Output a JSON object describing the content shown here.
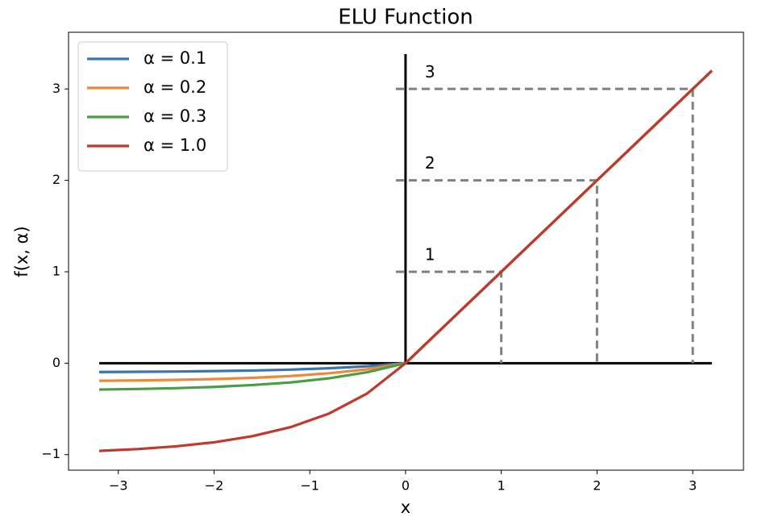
{
  "chart_data": {
    "type": "line",
    "title": "ELU Function",
    "xlabel": "x",
    "ylabel": "f(x, α)",
    "x": [
      -3.2,
      -2.8,
      -2.4,
      -2.0,
      -1.6,
      -1.2,
      -0.8,
      -0.4,
      0,
      0.4,
      0.8,
      1.2,
      1.6,
      2.0,
      2.4,
      2.8,
      3.2
    ],
    "series": [
      {
        "name": "α = 0.1",
        "color": "#3a75b0",
        "values": [
          -0.096,
          -0.094,
          -0.091,
          -0.086,
          -0.08,
          -0.07,
          -0.055,
          -0.033,
          0,
          0.4,
          0.8,
          1.2,
          1.6,
          2.0,
          2.4,
          2.8,
          3.2
        ]
      },
      {
        "name": "α = 0.2",
        "color": "#f0883a",
        "values": [
          -0.192,
          -0.188,
          -0.182,
          -0.173,
          -0.16,
          -0.14,
          -0.11,
          -0.066,
          0,
          0.4,
          0.8,
          1.2,
          1.6,
          2.0,
          2.4,
          2.8,
          3.2
        ]
      },
      {
        "name": "α = 0.3",
        "color": "#4a9e43",
        "values": [
          -0.288,
          -0.282,
          -0.273,
          -0.259,
          -0.239,
          -0.21,
          -0.165,
          -0.099,
          0,
          0.4,
          0.8,
          1.2,
          1.6,
          2.0,
          2.4,
          2.8,
          3.2
        ]
      },
      {
        "name": "α = 1.0",
        "color": "#c0392b",
        "values": [
          -0.959,
          -0.939,
          -0.909,
          -0.865,
          -0.798,
          -0.699,
          -0.551,
          -0.33,
          0,
          0.4,
          0.8,
          1.2,
          1.6,
          2.0,
          2.4,
          2.8,
          3.2
        ]
      }
    ],
    "guides": [
      1,
      2,
      3
    ],
    "xlim": [
      -3.52,
      3.53
    ],
    "ylim": [
      -1.17,
      3.62
    ],
    "xticks": [
      {
        "value": -3,
        "label": "−3"
      },
      {
        "value": -2,
        "label": "−2"
      },
      {
        "value": -1,
        "label": "−1"
      },
      0,
      1,
      2,
      3
    ],
    "yticks": [
      {
        "value": -1,
        "label": "−1"
      },
      0,
      1,
      2,
      3
    ],
    "grid": false,
    "legend": "upper-left"
  }
}
